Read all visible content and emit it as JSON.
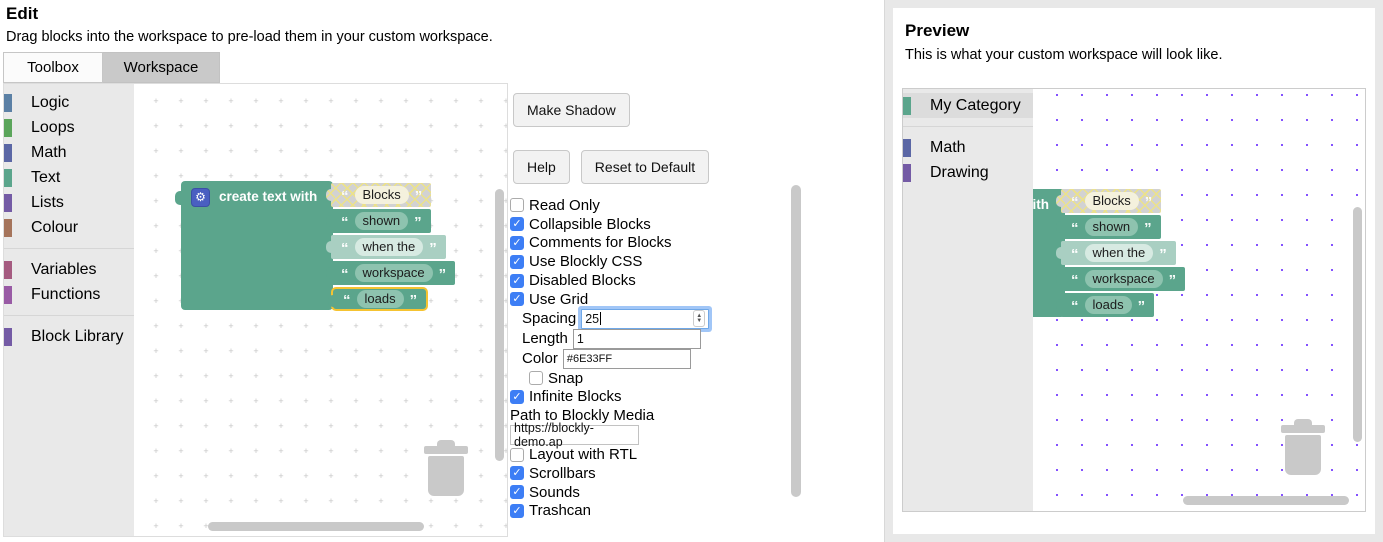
{
  "edit": {
    "title": "Edit",
    "subtitle": "Drag blocks into the workspace to pre-load them in your custom workspace.",
    "tabs": {
      "toolbox": "Toolbox",
      "workspace": "Workspace"
    },
    "toolbox_categories": [
      {
        "label": "Logic",
        "color": "#5b80a5",
        "group": 1
      },
      {
        "label": "Loops",
        "color": "#5ba55b",
        "group": 1
      },
      {
        "label": "Math",
        "color": "#5b67a5",
        "group": 1
      },
      {
        "label": "Text",
        "color": "#5ba58c",
        "group": 1
      },
      {
        "label": "Lists",
        "color": "#745ba5",
        "group": 1
      },
      {
        "label": "Colour",
        "color": "#a5745b",
        "group": 1
      },
      {
        "label": "Variables",
        "color": "#a55b80",
        "group": 2
      },
      {
        "label": "Functions",
        "color": "#995ba5",
        "group": 2
      },
      {
        "label": "Block Library",
        "color": "#745ba5",
        "group": 3
      }
    ],
    "workspace_blocks": {
      "main_block": {
        "label": "create text with",
        "color": "#5ba58c",
        "icon": "gear-icon"
      },
      "text_blocks": [
        {
          "text": "Blocks",
          "variant": "shadow"
        },
        {
          "text": "shown",
          "variant": "normal"
        },
        {
          "text": "when the",
          "variant": "light"
        },
        {
          "text": "workspace",
          "variant": "normal"
        },
        {
          "text": "loads",
          "variant": "selected"
        }
      ]
    },
    "buttons": {
      "make_shadow": "Make Shadow",
      "help": "Help",
      "reset_to_default": "Reset to Default"
    },
    "settings": [
      {
        "type": "checkbox",
        "label": "Read Only",
        "checked": false
      },
      {
        "type": "checkbox",
        "label": "Collapsible Blocks",
        "checked": true
      },
      {
        "type": "checkbox",
        "label": "Comments for Blocks",
        "checked": true
      },
      {
        "type": "checkbox",
        "label": "Use Blockly CSS",
        "checked": true
      },
      {
        "type": "checkbox",
        "label": "Disabled Blocks",
        "checked": true
      },
      {
        "type": "checkbox",
        "label": "Use Grid",
        "checked": true
      },
      {
        "type": "field",
        "label": "Spacing",
        "value": "25",
        "indent": 1,
        "focused": true,
        "spinner": true
      },
      {
        "type": "field",
        "label": "Length",
        "value": "1",
        "indent": 1
      },
      {
        "type": "field",
        "label": "Color",
        "value": "#6E33FF",
        "indent": 1,
        "small": true
      },
      {
        "type": "checkbox",
        "label": "Snap",
        "checked": false,
        "indent": 2
      },
      {
        "type": "checkbox",
        "label": "Infinite Blocks",
        "checked": true
      },
      {
        "type": "label",
        "label": "Path to Blockly Media"
      },
      {
        "type": "input",
        "value": "https://blockly-demo.ap",
        "name": "blockly-media"
      },
      {
        "type": "checkbox",
        "label": "Layout with RTL",
        "checked": false
      },
      {
        "type": "checkbox",
        "label": "Scrollbars",
        "checked": true
      },
      {
        "type": "checkbox",
        "label": "Sounds",
        "checked": true
      },
      {
        "type": "checkbox",
        "label": "Trashcan",
        "checked": true
      }
    ],
    "colors": {
      "checkbox_accent": "#3d7ef5",
      "block_teal": "#5ba58c",
      "selection_outline": "#f5c331"
    }
  },
  "preview": {
    "title": "Preview",
    "subtitle": "This is what your custom workspace will look like.",
    "toolbox_categories": [
      {
        "label": "My Category",
        "color": "#5ba58c",
        "selected": true,
        "group": 1
      },
      {
        "label": "Math",
        "color": "#5b67a5",
        "group": 2
      },
      {
        "label": "Drawing",
        "color": "#745ba5",
        "group": 2
      }
    ],
    "workspace_blocks": {
      "main_block": {
        "label": "create text with",
        "color": "#5ba58c"
      },
      "text_blocks": [
        {
          "text": "Blocks",
          "variant": "shadow"
        },
        {
          "text": "shown",
          "variant": "normal"
        },
        {
          "text": "when the",
          "variant": "light"
        },
        {
          "text": "workspace",
          "variant": "normal"
        },
        {
          "text": "loads",
          "variant": "normal"
        }
      ]
    },
    "grid_color": "#6E33FF"
  }
}
